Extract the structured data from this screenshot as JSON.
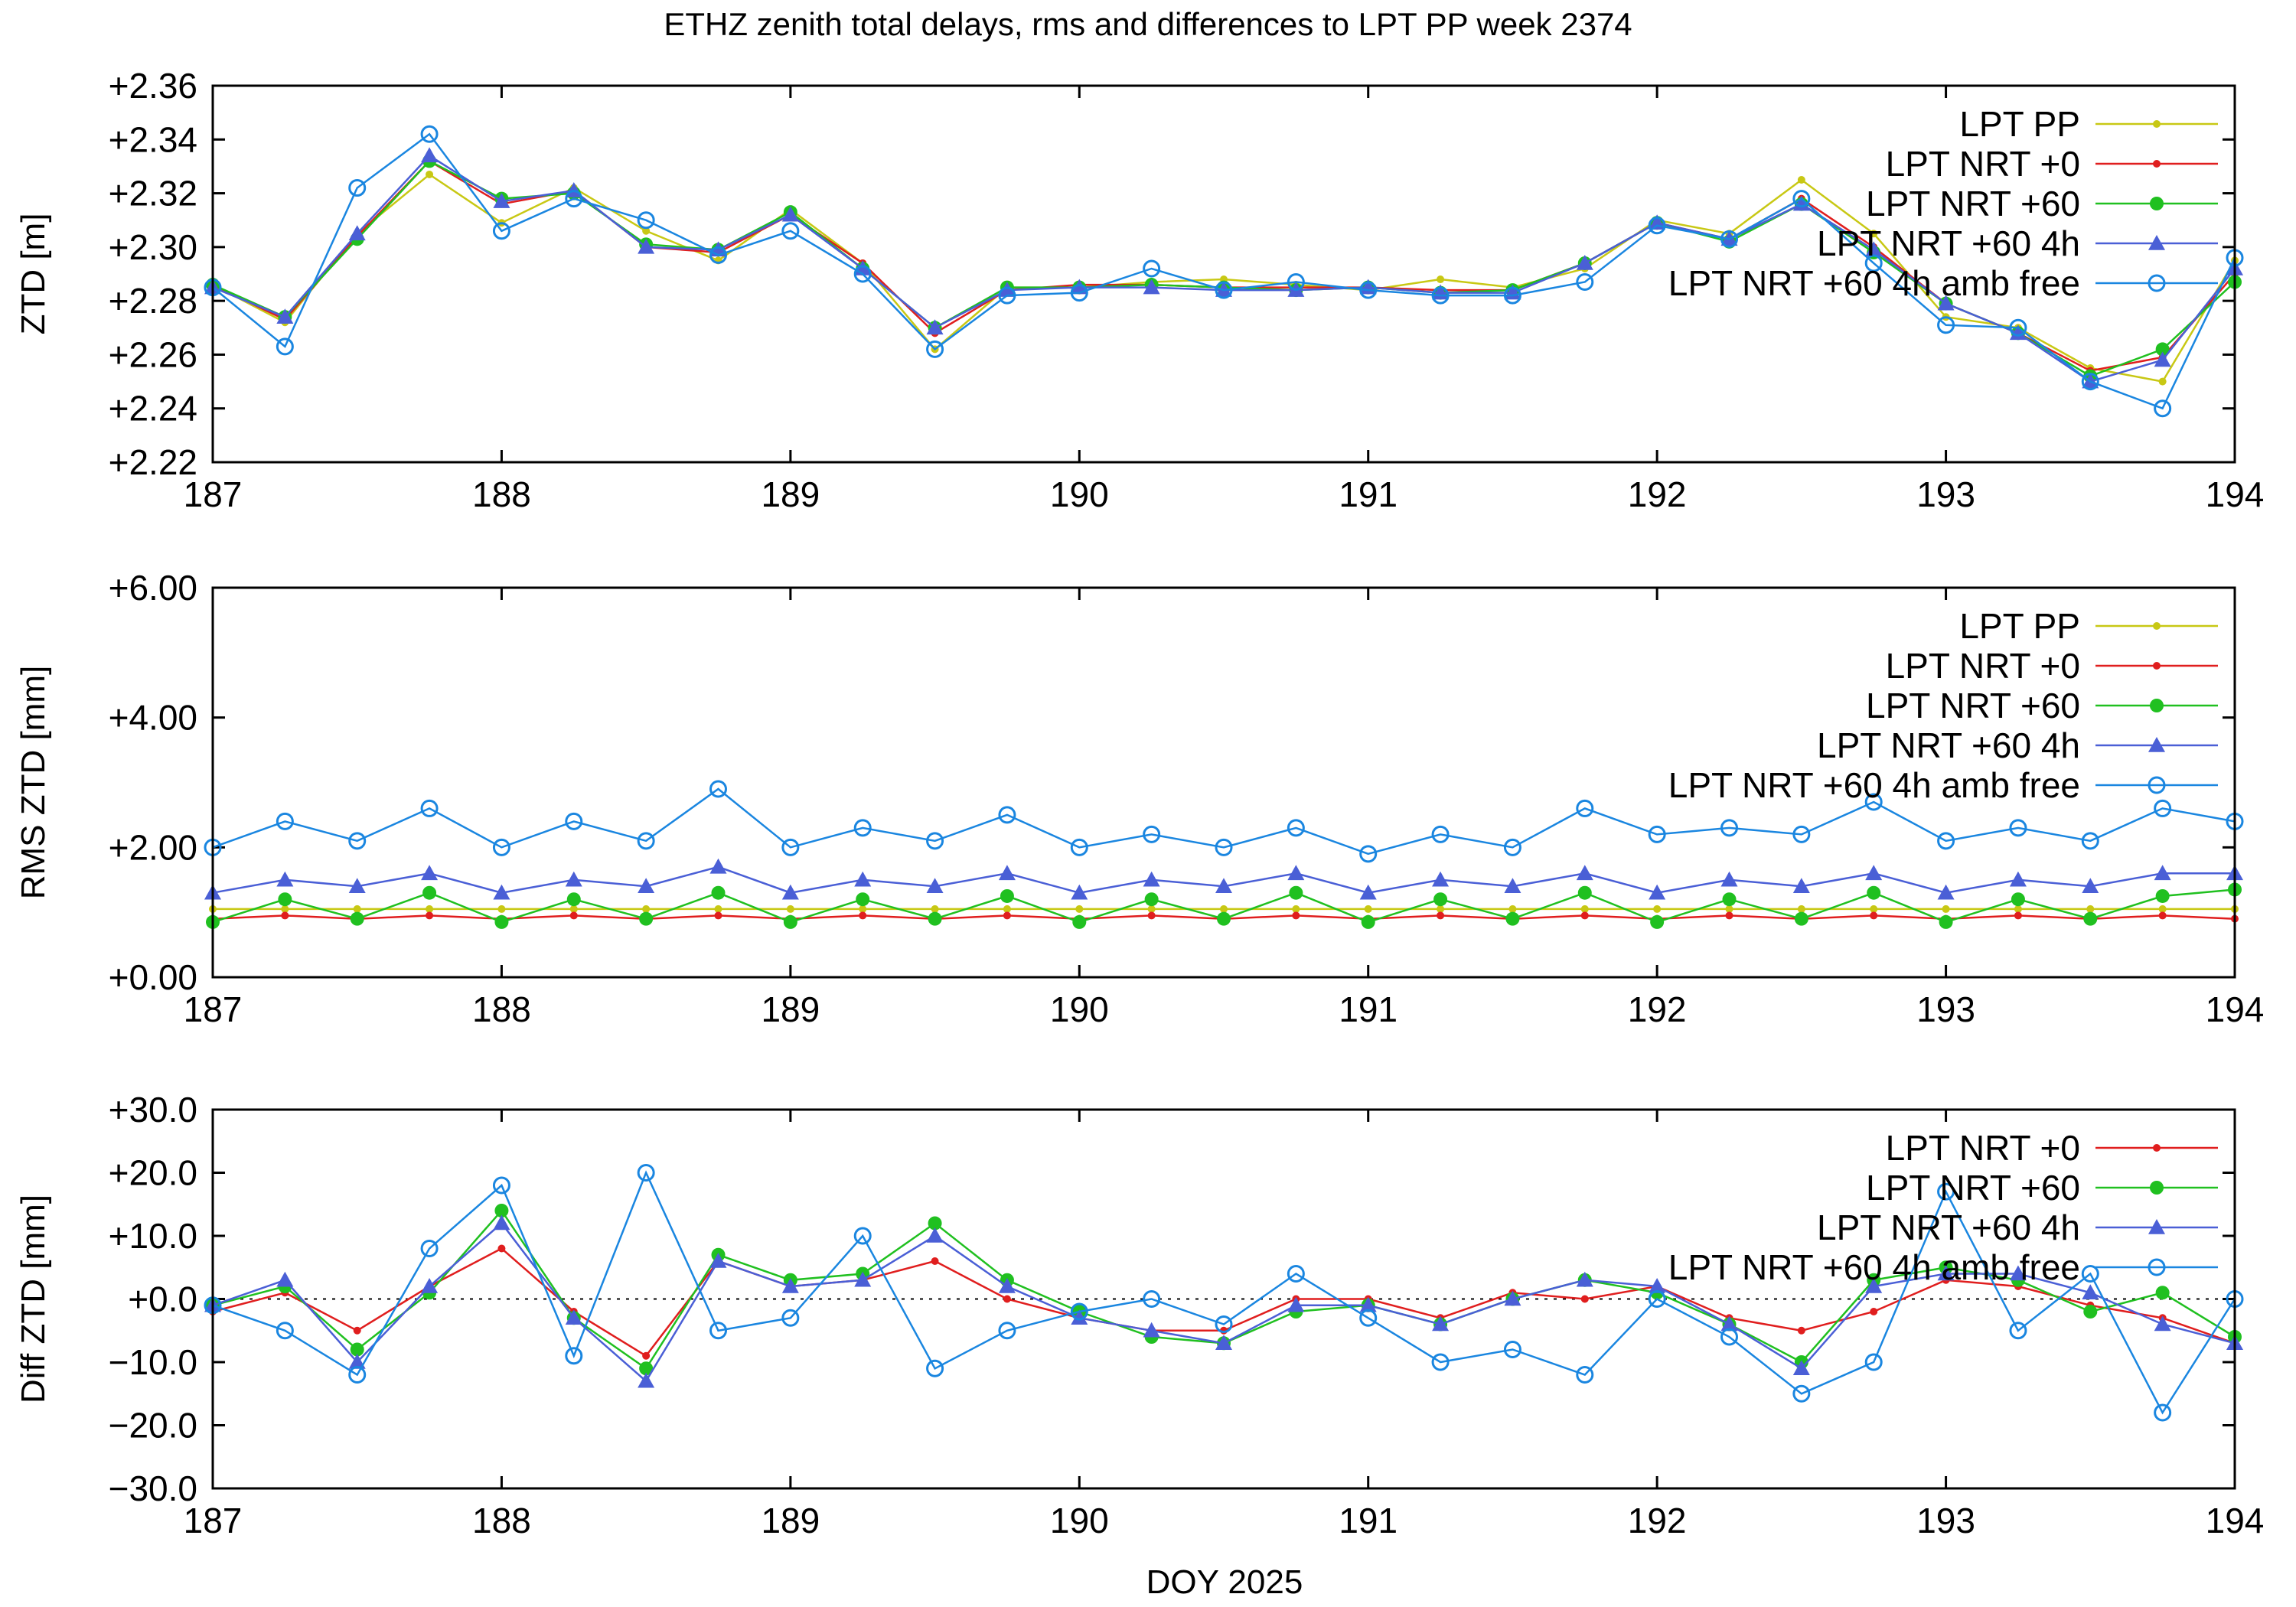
{
  "figure": {
    "title": "ETHZ zenith total delays, rms and differences to LPT PP week 2374",
    "xlabel": "DOY 2025"
  },
  "colors": {
    "lpt_pp": "#c8c814",
    "nrt0": "#e01e1e",
    "nrt60": "#20c020",
    "nrt60_4h": "#4a5fd6",
    "amb_free": "#1a86e0",
    "axes": "#000000",
    "zero_line": "#000000"
  },
  "chart_data": [
    {
      "type": "line",
      "title": "",
      "xlabel": "",
      "ylabel": "ZTD [m]",
      "xlim": [
        187,
        194
      ],
      "ylim": [
        2.22,
        2.36
      ],
      "x_ticks": [
        187,
        188,
        189,
        190,
        191,
        192,
        193,
        194
      ],
      "x_tick_labels": [
        "187",
        "188",
        "189",
        "190",
        "191",
        "192",
        "193",
        "194"
      ],
      "y_ticks": [
        2.22,
        2.24,
        2.26,
        2.28,
        2.3,
        2.32,
        2.34,
        2.36
      ],
      "y_tick_labels": [
        "+2.22",
        "+2.24",
        "+2.26",
        "+2.28",
        "+2.30",
        "+2.32",
        "+2.34",
        "+2.36"
      ],
      "grid": false,
      "legend_position": "top-right",
      "x": [
        187.0,
        187.25,
        187.5,
        187.75,
        188.0,
        188.25,
        188.5,
        188.75,
        189.0,
        189.25,
        189.5,
        189.75,
        190.0,
        190.25,
        190.5,
        190.75,
        191.0,
        191.25,
        191.5,
        191.75,
        192.0,
        192.25,
        192.5,
        192.75,
        193.0,
        193.25,
        193.5,
        193.75,
        194.0
      ],
      "series": [
        {
          "name": "LPT PP",
          "color_key": "lpt_pp",
          "marker": "small-dot",
          "values": [
            2.286,
            2.272,
            2.305,
            2.327,
            2.309,
            2.322,
            2.306,
            2.295,
            2.314,
            2.294,
            2.262,
            2.285,
            2.285,
            2.287,
            2.288,
            2.286,
            2.284,
            2.288,
            2.285,
            2.292,
            2.31,
            2.305,
            2.325,
            2.305,
            2.274,
            2.27,
            2.255,
            2.25,
            2.295
          ]
        },
        {
          "name": "LPT NRT +0",
          "color_key": "nrt0",
          "marker": "small-dot",
          "values": [
            2.286,
            2.273,
            2.304,
            2.332,
            2.316,
            2.321,
            2.3,
            2.298,
            2.312,
            2.294,
            2.268,
            2.284,
            2.286,
            2.286,
            2.285,
            2.285,
            2.285,
            2.284,
            2.284,
            2.294,
            2.309,
            2.303,
            2.318,
            2.3,
            2.279,
            2.268,
            2.254,
            2.259,
            2.29
          ]
        },
        {
          "name": "LPT NRT +60",
          "color_key": "nrt60",
          "marker": "filled-circle",
          "values": [
            2.286,
            2.274,
            2.303,
            2.332,
            2.318,
            2.32,
            2.301,
            2.299,
            2.313,
            2.292,
            2.27,
            2.285,
            2.285,
            2.286,
            2.285,
            2.284,
            2.285,
            2.283,
            2.284,
            2.294,
            2.309,
            2.302,
            2.316,
            2.298,
            2.279,
            2.268,
            2.252,
            2.262,
            2.287
          ]
        },
        {
          "name": "LPT NRT +60 4h",
          "color_key": "nrt60_4h",
          "marker": "triangle",
          "values": [
            2.285,
            2.274,
            2.305,
            2.334,
            2.317,
            2.321,
            2.3,
            2.299,
            2.312,
            2.292,
            2.27,
            2.284,
            2.285,
            2.285,
            2.284,
            2.284,
            2.285,
            2.283,
            2.283,
            2.294,
            2.309,
            2.303,
            2.316,
            2.299,
            2.279,
            2.268,
            2.25,
            2.258,
            2.292
          ]
        },
        {
          "name": "LPT NRT +60 4h amb free",
          "color_key": "amb_free",
          "marker": "open-circle",
          "values": [
            2.285,
            2.263,
            2.322,
            2.342,
            2.306,
            2.318,
            2.31,
            2.297,
            2.306,
            2.29,
            2.262,
            2.282,
            2.283,
            2.292,
            2.284,
            2.287,
            2.284,
            2.282,
            2.282,
            2.287,
            2.308,
            2.303,
            2.318,
            2.294,
            2.271,
            2.27,
            2.25,
            2.24,
            2.296
          ]
        }
      ]
    },
    {
      "type": "line",
      "title": "",
      "xlabel": "",
      "ylabel": "RMS ZTD [mm]",
      "xlim": [
        187,
        194
      ],
      "ylim": [
        0,
        6
      ],
      "x_ticks": [
        187,
        188,
        189,
        190,
        191,
        192,
        193,
        194
      ],
      "x_tick_labels": [
        "187",
        "188",
        "189",
        "190",
        "191",
        "192",
        "193",
        "194"
      ],
      "y_ticks": [
        0,
        2,
        4,
        6
      ],
      "y_tick_labels": [
        "+0.00",
        "+2.00",
        "+4.00",
        "+6.00"
      ],
      "grid": false,
      "legend_position": "top-right",
      "x": [
        187.0,
        187.25,
        187.5,
        187.75,
        188.0,
        188.25,
        188.5,
        188.75,
        189.0,
        189.25,
        189.5,
        189.75,
        190.0,
        190.25,
        190.5,
        190.75,
        191.0,
        191.25,
        191.5,
        191.75,
        192.0,
        192.25,
        192.5,
        192.75,
        193.0,
        193.25,
        193.5,
        193.75,
        194.0
      ],
      "series": [
        {
          "name": "LPT PP",
          "color_key": "lpt_pp",
          "marker": "small-dot",
          "values": [
            1.05,
            1.05,
            1.05,
            1.05,
            1.05,
            1.05,
            1.05,
            1.05,
            1.05,
            1.05,
            1.05,
            1.05,
            1.05,
            1.05,
            1.05,
            1.05,
            1.05,
            1.05,
            1.05,
            1.05,
            1.05,
            1.05,
            1.05,
            1.05,
            1.05,
            1.05,
            1.05,
            1.05,
            1.05
          ]
        },
        {
          "name": "LPT NRT +0",
          "color_key": "nrt0",
          "marker": "small-dot",
          "values": [
            0.9,
            0.95,
            0.9,
            0.95,
            0.9,
            0.95,
            0.9,
            0.95,
            0.9,
            0.95,
            0.9,
            0.95,
            0.9,
            0.95,
            0.9,
            0.95,
            0.9,
            0.95,
            0.9,
            0.95,
            0.9,
            0.95,
            0.9,
            0.95,
            0.9,
            0.95,
            0.9,
            0.95,
            0.9
          ]
        },
        {
          "name": "LPT NRT +60",
          "color_key": "nrt60",
          "marker": "filled-circle",
          "values": [
            0.85,
            1.2,
            0.9,
            1.3,
            0.85,
            1.2,
            0.9,
            1.3,
            0.85,
            1.2,
            0.9,
            1.25,
            0.85,
            1.2,
            0.9,
            1.3,
            0.85,
            1.2,
            0.9,
            1.3,
            0.85,
            1.2,
            0.9,
            1.3,
            0.85,
            1.2,
            0.9,
            1.25,
            1.35
          ]
        },
        {
          "name": "LPT NRT +60 4h",
          "color_key": "nrt60_4h",
          "marker": "triangle",
          "values": [
            1.3,
            1.5,
            1.4,
            1.6,
            1.3,
            1.5,
            1.4,
            1.7,
            1.3,
            1.5,
            1.4,
            1.6,
            1.3,
            1.5,
            1.4,
            1.6,
            1.3,
            1.5,
            1.4,
            1.6,
            1.3,
            1.5,
            1.4,
            1.6,
            1.3,
            1.5,
            1.4,
            1.6,
            1.6
          ]
        },
        {
          "name": "LPT NRT +60 4h amb free",
          "color_key": "amb_free",
          "marker": "open-circle",
          "values": [
            2.0,
            2.4,
            2.1,
            2.6,
            2.0,
            2.4,
            2.1,
            2.9,
            2.0,
            2.3,
            2.1,
            2.5,
            2.0,
            2.2,
            2.0,
            2.3,
            1.9,
            2.2,
            2.0,
            2.6,
            2.2,
            2.3,
            2.2,
            2.7,
            2.1,
            2.3,
            2.1,
            2.6,
            2.4
          ]
        }
      ]
    },
    {
      "type": "line",
      "title": "",
      "xlabel": "DOY 2025",
      "ylabel": "Diff ZTD [mm]",
      "xlim": [
        187,
        194
      ],
      "ylim": [
        -30,
        30
      ],
      "x_ticks": [
        187,
        188,
        189,
        190,
        191,
        192,
        193,
        194
      ],
      "x_tick_labels": [
        "187",
        "188",
        "189",
        "190",
        "191",
        "192",
        "193",
        "194"
      ],
      "y_ticks": [
        -30,
        -20,
        -10,
        0,
        10,
        20,
        30
      ],
      "y_tick_labels": [
        "−30.0",
        "−20.0",
        "−10.0",
        "+0.0",
        "+10.0",
        "+20.0",
        "+30.0"
      ],
      "zero_line": true,
      "grid": false,
      "legend_position": "top-right",
      "x": [
        187.0,
        187.25,
        187.5,
        187.75,
        188.0,
        188.25,
        188.5,
        188.75,
        189.0,
        189.25,
        189.5,
        189.75,
        190.0,
        190.25,
        190.5,
        190.75,
        191.0,
        191.25,
        191.5,
        191.75,
        192.0,
        192.25,
        192.5,
        192.75,
        193.0,
        193.25,
        193.5,
        193.75,
        194.0
      ],
      "series": [
        {
          "name": "LPT NRT +0",
          "color_key": "nrt0",
          "marker": "small-dot",
          "values": [
            -2,
            1,
            -5,
            2,
            8,
            -2,
            -9,
            6,
            2,
            3,
            6,
            0,
            -3,
            -5,
            -5,
            0,
            0,
            -3,
            1,
            0,
            2,
            -3,
            -5,
            -2,
            3,
            2,
            -1,
            -3,
            -7
          ]
        },
        {
          "name": "LPT NRT +60",
          "color_key": "nrt60",
          "marker": "filled-circle",
          "values": [
            -1,
            2,
            -8,
            1,
            14,
            -3,
            -11,
            7,
            3,
            4,
            12,
            3,
            -2,
            -6,
            -7,
            -2,
            -1,
            -4,
            0,
            3,
            1,
            -4,
            -10,
            3,
            5,
            3,
            -2,
            1,
            -6
          ]
        },
        {
          "name": "LPT NRT +60 4h",
          "color_key": "nrt60_4h",
          "marker": "triangle",
          "values": [
            -1,
            3,
            -10,
            2,
            12,
            -3,
            -13,
            6,
            2,
            3,
            10,
            2,
            -3,
            -5,
            -7,
            -1,
            -1,
            -4,
            0,
            3,
            2,
            -4,
            -11,
            2,
            4,
            4,
            1,
            -4,
            -7
          ]
        },
        {
          "name": "LPT NRT +60 4h amb free",
          "color_key": "amb_free",
          "marker": "open-circle",
          "values": [
            -1,
            -5,
            -12,
            8,
            18,
            -9,
            20,
            -5,
            -3,
            10,
            -11,
            -5,
            -2,
            0,
            -4,
            4,
            -3,
            -10,
            -8,
            -12,
            0,
            -6,
            -15,
            -10,
            17,
            -5,
            4,
            -18,
            0
          ]
        }
      ]
    }
  ]
}
